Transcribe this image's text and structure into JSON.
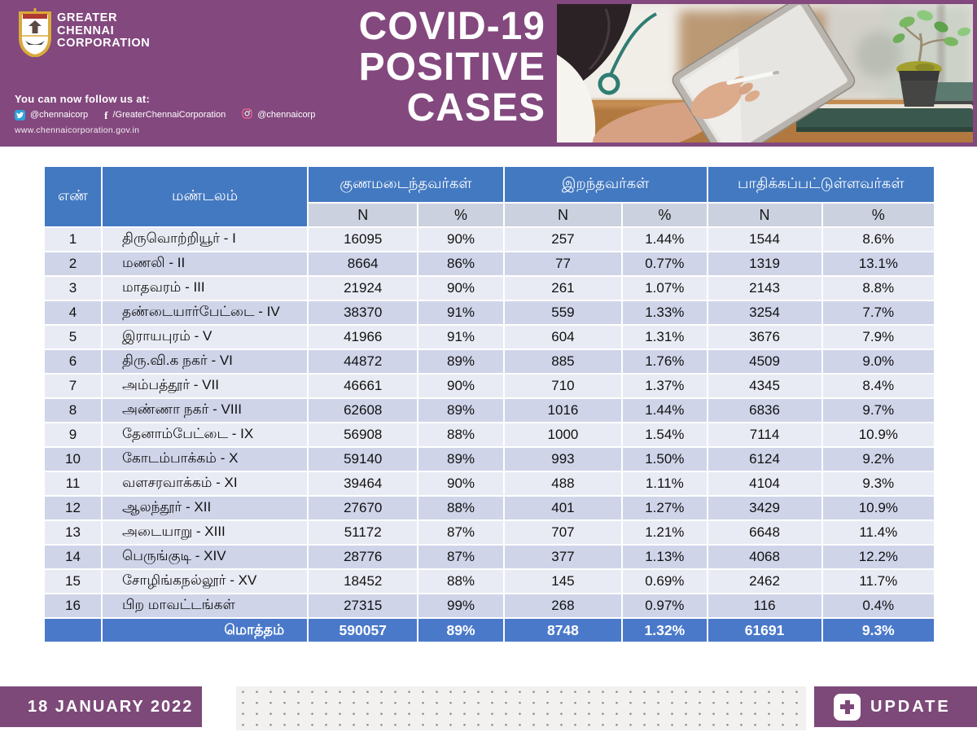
{
  "banner": {
    "org_name_lines": [
      "GREATER",
      "CHENNAI",
      "CORPORATION"
    ],
    "follow": {
      "heading": "You can now follow us at:",
      "twitter_handle": "@chennaicorp",
      "facebook_handle": "/GreaterChennaiCorporation",
      "instagram_handle": "@chennaicorp",
      "website": "www.chennaicorporation.gov.in"
    },
    "title_lines": [
      "COVID-19",
      "POSITIVE",
      "CASES"
    ]
  },
  "table": {
    "headers": {
      "num": "எண்",
      "zone": "மண்டலம்",
      "recovered": "குணமடைந்தவர்கள்",
      "deceased": "இறந்தவர்கள்",
      "affected": "பாதிக்கப்பட்டுள்ளவர்கள்"
    },
    "subheaders": [
      "N",
      "%",
      "N",
      "%",
      "N",
      "%"
    ],
    "rows": [
      [
        "1",
        "திருவொற்றியூர் - I",
        "16095",
        "90%",
        "257",
        "1.44%",
        "1544",
        "8.6%"
      ],
      [
        "2",
        "மணலி - II",
        "8664",
        "86%",
        "77",
        "0.77%",
        "1319",
        "13.1%"
      ],
      [
        "3",
        "மாதவரம் - III",
        "21924",
        "90%",
        "261",
        "1.07%",
        "2143",
        "8.8%"
      ],
      [
        "4",
        "தண்டையார்பேட்டை - IV",
        "38370",
        "91%",
        "559",
        "1.33%",
        "3254",
        "7.7%"
      ],
      [
        "5",
        "இராயபுரம் - V",
        "41966",
        "91%",
        "604",
        "1.31%",
        "3676",
        "7.9%"
      ],
      [
        "6",
        "திரு.வி.க நகர் - VI",
        "44872",
        "89%",
        "885",
        "1.76%",
        "4509",
        "9.0%"
      ],
      [
        "7",
        "அம்பத்தூர் - VII",
        "46661",
        "90%",
        "710",
        "1.37%",
        "4345",
        "8.4%"
      ],
      [
        "8",
        "அண்ணா நகர் - VIII",
        "62608",
        "89%",
        "1016",
        "1.44%",
        "6836",
        "9.7%"
      ],
      [
        "9",
        "தேனாம்பேட்டை - IX",
        "56908",
        "88%",
        "1000",
        "1.54%",
        "7114",
        "10.9%"
      ],
      [
        "10",
        "கோடம்பாக்கம் - X",
        "59140",
        "89%",
        "993",
        "1.50%",
        "6124",
        "9.2%"
      ],
      [
        "11",
        "வளசரவாக்கம் - XI",
        "39464",
        "90%",
        "488",
        "1.11%",
        "4104",
        "9.3%"
      ],
      [
        "12",
        "ஆலந்தூர் - XII",
        "27670",
        "88%",
        "401",
        "1.27%",
        "3429",
        "10.9%"
      ],
      [
        "13",
        "அடையாறு - XIII",
        "51172",
        "87%",
        "707",
        "1.21%",
        "6648",
        "11.4%"
      ],
      [
        "14",
        "பெருங்குடி - XIV",
        "28776",
        "87%",
        "377",
        "1.13%",
        "4068",
        "12.2%"
      ],
      [
        "15",
        "சோழிங்கநல்லூர் - XV",
        "18452",
        "88%",
        "145",
        "0.69%",
        "2462",
        "11.7%"
      ],
      [
        "16",
        "பிற மாவட்டங்கள்",
        "27315",
        "99%",
        "268",
        "0.97%",
        "116",
        "0.4%"
      ]
    ],
    "total": [
      "",
      "மொத்தம்",
      "590057",
      "89%",
      "8748",
      "1.32%",
      "61691",
      "9.3%"
    ]
  },
  "footer": {
    "date": "18 JANUARY 2022",
    "update_label": "UPDATE"
  },
  "icons": {
    "twitter": "twitter-bird",
    "facebook": "facebook-f",
    "instagram": "instagram-camera",
    "update": "medical-plus",
    "logo": "chennai-corporation-crest"
  },
  "colors": {
    "banner_purple": "#83487e",
    "footer_purple": "#7d4979",
    "header_blue": "#4379c1",
    "total_blue": "#4a79ca",
    "row_light": "#e9ebf4",
    "row_dark": "#cfd4e9",
    "subheader_gray": "#cbd1de",
    "twitter_blue": "#2ea3dc"
  }
}
